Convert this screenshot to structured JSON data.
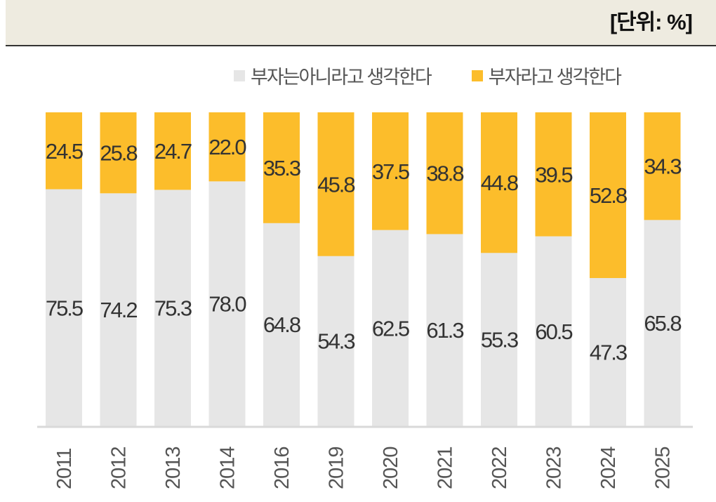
{
  "header": {
    "unit": "[단위: %]"
  },
  "colors": {
    "not_rich": "#e6e6e6",
    "rich": "#fcbd2b"
  },
  "chart_data": {
    "type": "bar",
    "stacked": true,
    "categories": [
      "2011",
      "2012",
      "2013",
      "2014",
      "2016",
      "2019",
      "2020",
      "2021",
      "2022",
      "2023",
      "2024",
      "2025"
    ],
    "series": [
      {
        "name": "부자는아니라고 생각한다",
        "values": [
          75.5,
          74.2,
          75.3,
          78.0,
          64.8,
          54.3,
          62.5,
          61.3,
          55.3,
          60.5,
          47.3,
          65.8
        ]
      },
      {
        "name": "부자라고 생각한다",
        "values": [
          24.5,
          25.8,
          24.7,
          22.0,
          35.3,
          45.8,
          37.5,
          38.8,
          44.8,
          39.5,
          52.8,
          34.3
        ]
      }
    ],
    "ylim": [
      0,
      100
    ],
    "legend": "top-right",
    "grid": false
  }
}
